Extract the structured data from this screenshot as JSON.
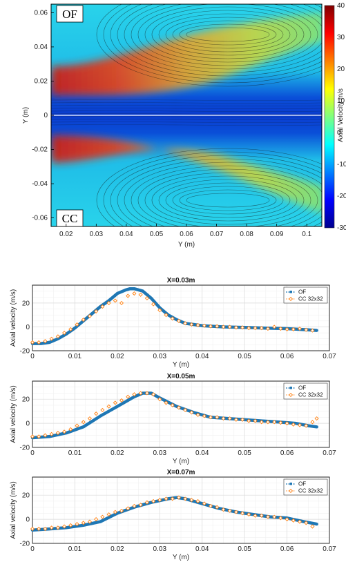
{
  "chart_data": [
    {
      "type": "heatmap",
      "panel_labels": [
        "OF",
        "CC"
      ],
      "xlabel": "Y (m)",
      "ylabel": "Y (m)",
      "xlim": [
        0.015,
        0.105
      ],
      "ylim": [
        -0.065,
        0.065
      ],
      "xticks": [
        "0.02",
        "0.03",
        "0.04",
        "0.05",
        "0.06",
        "0.07",
        "0.08",
        "0.09",
        "0.1"
      ],
      "yticks": [
        "0.06",
        "0.04",
        "0.02",
        "0",
        "-0.02",
        "-0.04",
        "-0.06"
      ],
      "colorbar": {
        "label": "Axial Velocity m/s",
        "range": [
          -30,
          40
        ],
        "ticks": [
          "40",
          "30",
          "20",
          "10",
          "0",
          "-10",
          "-20",
          "-30"
        ],
        "colormap": "jet"
      }
    },
    {
      "type": "line",
      "title": "X=0.03m",
      "xlabel": "Y (m)",
      "ylabel": "Axial velocity (m/s)",
      "xlim": [
        0,
        0.07
      ],
      "ylim": [
        -20,
        35
      ],
      "xticks": [
        "0",
        "0.01",
        "0.02",
        "0.03",
        "0.04",
        "0.05",
        "0.06",
        "0.07"
      ],
      "yticks": [
        "20",
        "0",
        "-20"
      ],
      "legend": [
        "OF",
        "CC 32x32"
      ],
      "legend_position": "top-right",
      "series": [
        {
          "name": "OF",
          "color": "#1f77b4",
          "x": [
            0,
            0.002,
            0.004,
            0.006,
            0.008,
            0.01,
            0.012,
            0.014,
            0.016,
            0.018,
            0.02,
            0.022,
            0.023,
            0.024,
            0.026,
            0.028,
            0.03,
            0.032,
            0.034,
            0.036,
            0.038,
            0.04,
            0.045,
            0.05,
            0.055,
            0.06,
            0.065,
            0.067
          ],
          "y": [
            -14,
            -14,
            -13,
            -10,
            -6,
            -1,
            5,
            11,
            17,
            22,
            28,
            31,
            32,
            32,
            30,
            24,
            16,
            10,
            6,
            3,
            2,
            1,
            0,
            -0.5,
            -1,
            -1.5,
            -2.5,
            -3
          ]
        },
        {
          "name": "CC 32x32",
          "color": "#ff7f0e",
          "x": [
            0,
            0.0015,
            0.003,
            0.0045,
            0.006,
            0.0075,
            0.009,
            0.0105,
            0.012,
            0.0135,
            0.015,
            0.0165,
            0.018,
            0.0195,
            0.021,
            0.0225,
            0.024,
            0.0255,
            0.027,
            0.0285,
            0.03,
            0.0315,
            0.033,
            0.0345,
            0.036,
            0.0375,
            0.039,
            0.0405,
            0.042,
            0.0435,
            0.045,
            0.0465,
            0.048,
            0.0495,
            0.051,
            0.0525,
            0.054,
            0.0555,
            0.057,
            0.0585,
            0.06,
            0.0615,
            0.063,
            0.0645,
            0.066
          ],
          "y": [
            -13,
            -13,
            -12,
            -10,
            -8,
            -5,
            -2,
            2,
            6,
            9,
            13,
            17,
            20,
            22,
            20,
            26,
            28,
            27,
            24,
            19,
            14,
            10,
            7,
            5,
            3,
            2,
            1.5,
            1,
            0.5,
            0.5,
            0,
            0,
            -0.5,
            -0.5,
            -1,
            -1,
            -1,
            -1.5,
            0,
            -1.5,
            -2,
            -2,
            -1.5,
            -2.5,
            -3
          ]
        }
      ]
    },
    {
      "type": "line",
      "title": "X=0.05m",
      "xlabel": "Y (m)",
      "ylabel": "Axial velocity (m/s)",
      "xlim": [
        0,
        0.07
      ],
      "ylim": [
        -20,
        35
      ],
      "xticks": [
        "0",
        "0.01",
        "0.02",
        "0.03",
        "0.04",
        "0.05",
        "0.06",
        "0.07"
      ],
      "yticks": [
        "20",
        "0",
        "-20"
      ],
      "legend": [
        "OF",
        "CC 32x32"
      ],
      "legend_position": "top-right",
      "series": [
        {
          "name": "OF",
          "color": "#1f77b4",
          "x": [
            0,
            0.004,
            0.008,
            0.012,
            0.016,
            0.02,
            0.024,
            0.026,
            0.028,
            0.03,
            0.034,
            0.038,
            0.042,
            0.046,
            0.05,
            0.054,
            0.058,
            0.062,
            0.065,
            0.067
          ],
          "y": [
            -12,
            -11,
            -8,
            -3,
            6,
            14,
            22,
            25,
            25,
            21,
            14,
            9,
            5,
            4,
            3,
            2,
            1,
            0,
            -2,
            -3
          ]
        },
        {
          "name": "CC 32x32",
          "color": "#ff7f0e",
          "x": [
            0,
            0.0015,
            0.003,
            0.0045,
            0.006,
            0.0075,
            0.009,
            0.0105,
            0.012,
            0.0135,
            0.015,
            0.0165,
            0.018,
            0.0195,
            0.021,
            0.0225,
            0.024,
            0.0255,
            0.027,
            0.0285,
            0.03,
            0.0315,
            0.033,
            0.0345,
            0.036,
            0.0375,
            0.039,
            0.0405,
            0.042,
            0.0435,
            0.045,
            0.0465,
            0.048,
            0.0495,
            0.051,
            0.0525,
            0.054,
            0.0555,
            0.057,
            0.0585,
            0.06,
            0.0615,
            0.063,
            0.0645,
            0.066,
            0.067
          ],
          "y": [
            -11,
            -11,
            -10,
            -9,
            -8,
            -7,
            -5,
            -2,
            1,
            4,
            8,
            11,
            14,
            17,
            19,
            22,
            24,
            25,
            25,
            24,
            20,
            17,
            15,
            13,
            11,
            9,
            7,
            6,
            5,
            5,
            4,
            4,
            3,
            3,
            2,
            2,
            1,
            1,
            1,
            0.5,
            0,
            -1,
            -1.5,
            -2,
            1,
            4
          ]
        }
      ]
    },
    {
      "type": "line",
      "title": "X=0.07m",
      "xlabel": "Y (m)",
      "ylabel": "Axial velocity (m/s)",
      "xlim": [
        0,
        0.07
      ],
      "ylim": [
        -20,
        35
      ],
      "xticks": [
        "0",
        "0.01",
        "0.02",
        "0.03",
        "0.04",
        "0.05",
        "0.06",
        "0.07"
      ],
      "yticks": [
        "20",
        "0",
        "-20"
      ],
      "legend": [
        "OF",
        "CC 32x32"
      ],
      "legend_position": "top-right",
      "series": [
        {
          "name": "OF",
          "color": "#1f77b4",
          "x": [
            0,
            0.004,
            0.008,
            0.012,
            0.016,
            0.02,
            0.024,
            0.028,
            0.032,
            0.034,
            0.036,
            0.04,
            0.044,
            0.048,
            0.052,
            0.056,
            0.06,
            0.064,
            0.067
          ],
          "y": [
            -9,
            -8,
            -7,
            -5,
            -2,
            5,
            10,
            14,
            17,
            18,
            17,
            13,
            9,
            6,
            4,
            2,
            1,
            -2,
            -4
          ]
        },
        {
          "name": "CC 32x32",
          "color": "#ff7f0e",
          "x": [
            0,
            0.0015,
            0.003,
            0.0045,
            0.006,
            0.0075,
            0.009,
            0.0105,
            0.012,
            0.0135,
            0.015,
            0.0165,
            0.018,
            0.0195,
            0.021,
            0.0225,
            0.024,
            0.0255,
            0.027,
            0.0285,
            0.03,
            0.0315,
            0.033,
            0.0345,
            0.036,
            0.0375,
            0.039,
            0.0405,
            0.042,
            0.0435,
            0.045,
            0.0465,
            0.048,
            0.0495,
            0.051,
            0.0525,
            0.054,
            0.0555,
            0.057,
            0.0585,
            0.06,
            0.0615,
            0.063,
            0.0645,
            0.066
          ],
          "y": [
            -8,
            -8,
            -8,
            -7,
            -7,
            -6,
            -5,
            -4,
            -3,
            -2,
            0,
            2,
            4,
            6,
            7,
            9,
            11,
            12,
            14,
            15,
            16,
            17,
            17,
            18,
            17,
            16,
            15,
            13,
            11,
            10,
            8,
            7,
            6,
            5,
            4,
            3,
            3,
            2,
            2,
            1,
            0,
            -1,
            -2,
            -3,
            -6
          ]
        }
      ]
    }
  ]
}
